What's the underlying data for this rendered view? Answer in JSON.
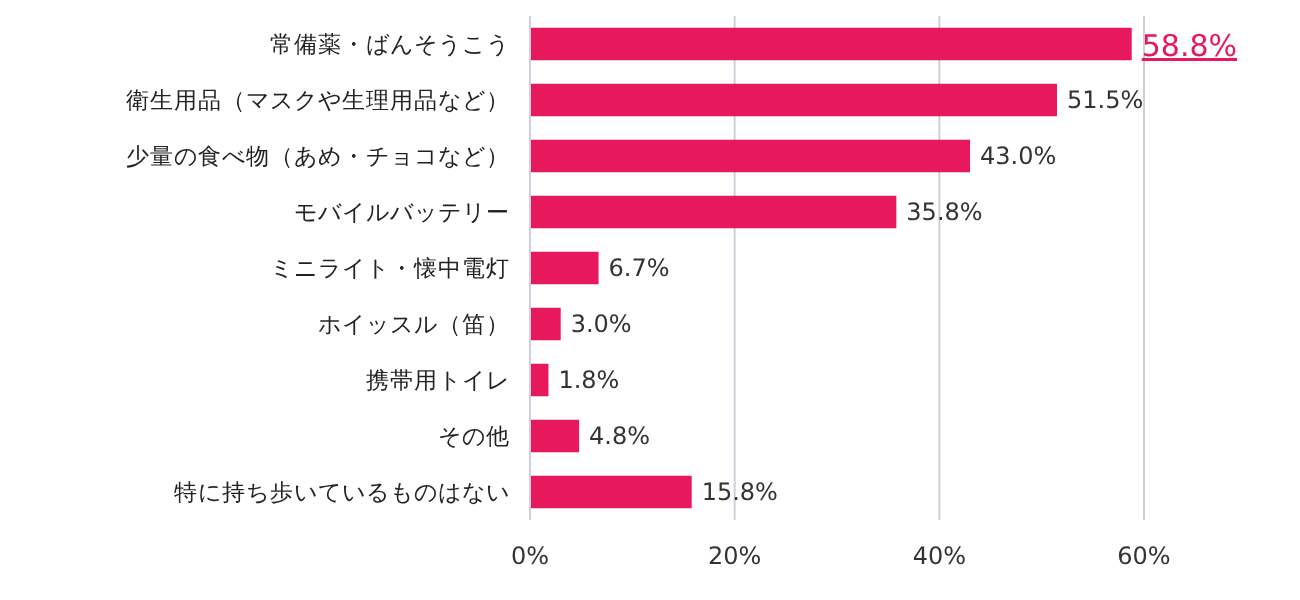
{
  "chart_data": {
    "type": "bar",
    "orientation": "horizontal",
    "categories": [
      "常備薬・ばんそうこう",
      "衛生用品（マスクや生理用品など）",
      "少量の食べ物（あめ・チョコなど）",
      "モバイルバッテリー",
      "ミニライト・懐中電灯",
      "ホイッスル（笛）",
      "携帯用トイレ",
      "その他",
      "特に持ち歩いているものはない"
    ],
    "values": [
      58.8,
      51.5,
      43.0,
      35.8,
      6.7,
      3.0,
      1.8,
      4.8,
      15.8
    ],
    "value_labels": [
      "58.8%",
      "51.5%",
      "43.0%",
      "35.8%",
      "6.7%",
      "3.0%",
      "1.8%",
      "4.8%",
      "15.8%"
    ],
    "color": "#e8185f",
    "xlim": [
      0,
      60
    ],
    "xticks": [
      {
        "value": 0,
        "label": "0%"
      },
      {
        "value": 20,
        "label": "20%"
      },
      {
        "value": 40,
        "label": "40%"
      },
      {
        "value": 60,
        "label": "60%"
      }
    ],
    "grid": "x"
  }
}
